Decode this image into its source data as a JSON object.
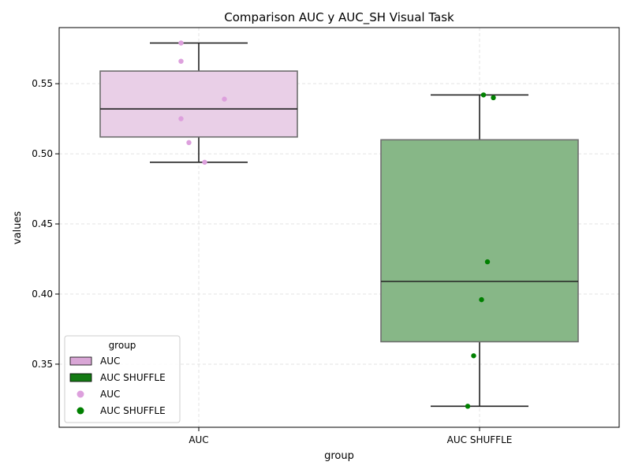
{
  "chart_data": {
    "type": "box",
    "title": "Comparison AUC y AUC_SH Visual Task",
    "xlabel": "group",
    "ylabel": "values",
    "categories": [
      "AUC",
      "AUC SHUFFLE"
    ],
    "ylim": [
      0.305,
      0.59
    ],
    "yticks": [
      0.35,
      0.4,
      0.45,
      0.5,
      0.55
    ],
    "ytick_labels": [
      "0.35",
      "0.40",
      "0.45",
      "0.50",
      "0.55"
    ],
    "grid": true,
    "legend": {
      "title": "group",
      "placement": "lower-left",
      "entries": [
        {
          "label": "AUC",
          "kind": "box",
          "color": "#d9a6d6"
        },
        {
          "label": "AUC SHUFFLE",
          "kind": "box",
          "color": "#137a13"
        },
        {
          "label": "AUC",
          "kind": "point",
          "color": "#dda0dd"
        },
        {
          "label": "AUC SHUFFLE",
          "kind": "point",
          "color": "#008000"
        }
      ]
    },
    "boxes": [
      {
        "category": "AUC",
        "whisker_low": 0.494,
        "q1": 0.512,
        "median": 0.532,
        "q3": 0.559,
        "whisker_high": 0.579,
        "fill": "#e9cfe7",
        "point_color": "#dda0dd"
      },
      {
        "category": "AUC SHUFFLE",
        "whisker_low": 0.32,
        "q1": 0.366,
        "median": 0.409,
        "q3": 0.51,
        "whisker_high": 0.542,
        "fill": "#87b787",
        "point_color": "#008000"
      }
    ],
    "points": [
      {
        "category": "AUC",
        "y": 0.579,
        "jitter": -0.09
      },
      {
        "category": "AUC",
        "y": 0.566,
        "jitter": -0.09
      },
      {
        "category": "AUC",
        "y": 0.539,
        "jitter": 0.13
      },
      {
        "category": "AUC",
        "y": 0.525,
        "jitter": -0.09
      },
      {
        "category": "AUC",
        "y": 0.508,
        "jitter": -0.05
      },
      {
        "category": "AUC",
        "y": 0.494,
        "jitter": 0.03
      },
      {
        "category": "AUC SHUFFLE",
        "y": 0.542,
        "jitter": 0.02
      },
      {
        "category": "AUC SHUFFLE",
        "y": 0.54,
        "jitter": 0.07
      },
      {
        "category": "AUC SHUFFLE",
        "y": 0.423,
        "jitter": 0.04
      },
      {
        "category": "AUC SHUFFLE",
        "y": 0.396,
        "jitter": 0.01
      },
      {
        "category": "AUC SHUFFLE",
        "y": 0.356,
        "jitter": -0.03
      },
      {
        "category": "AUC SHUFFLE",
        "y": 0.32,
        "jitter": -0.06
      }
    ]
  }
}
